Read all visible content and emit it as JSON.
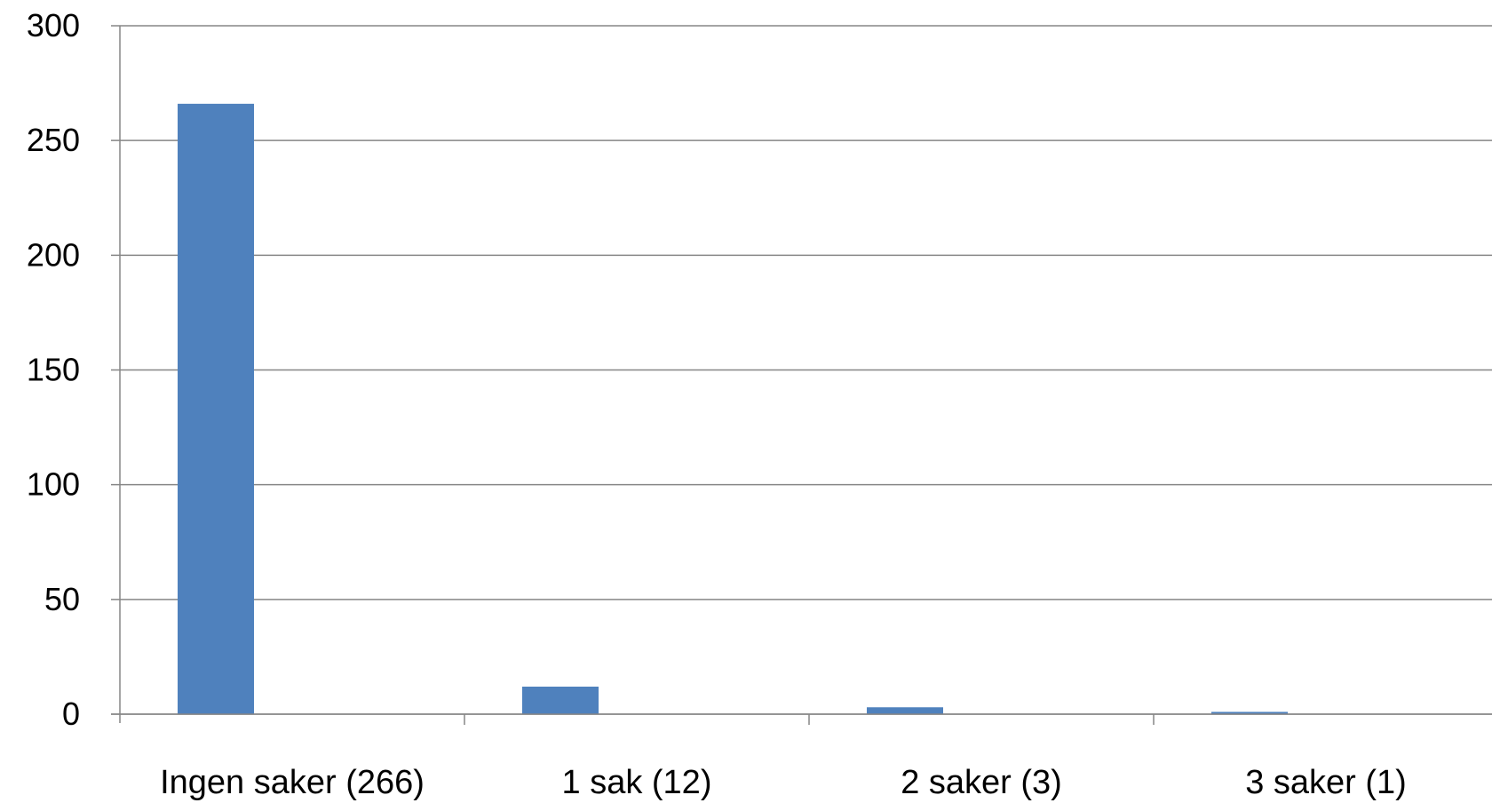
{
  "chart_data": {
    "type": "bar",
    "title": "",
    "xlabel": "",
    "ylabel": "",
    "categories": [
      "Ingen saker (266)",
      "1 sak (12)",
      "2 saker (3)",
      "3 saker (1)"
    ],
    "values": [
      266,
      12,
      3,
      1
    ],
    "ylim": [
      0,
      300
    ],
    "yticks": [
      0,
      50,
      100,
      150,
      200,
      250,
      300
    ],
    "ytick_labels": [
      "0",
      "50",
      "100",
      "150",
      "200",
      "250",
      "300"
    ],
    "grid": true,
    "legend": "none",
    "colors": {
      "bar": "#4f81bd",
      "gridline": "#868686",
      "axis": "#868686"
    }
  }
}
